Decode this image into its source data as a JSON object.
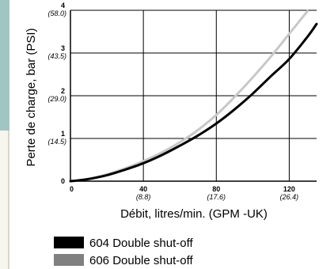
{
  "chart_data": {
    "type": "line",
    "xlabel": "Débit, litres/min. (GPM -UK)",
    "ylabel": "Perte de charge, bar (PSI)",
    "xlim": [
      0,
      135
    ],
    "ylim": [
      0,
      4
    ],
    "grid": true,
    "x_ticks": [
      {
        "value": 0,
        "label": "0",
        "sub": ""
      },
      {
        "value": 40,
        "label": "40",
        "sub": "(8.8)"
      },
      {
        "value": 80,
        "label": "80",
        "sub": "(17.6)"
      },
      {
        "value": 120,
        "label": "120",
        "sub": "(26.4)"
      }
    ],
    "y_ticks": [
      {
        "value": 0,
        "label": "0",
        "sub": ""
      },
      {
        "value": 1,
        "label": "1",
        "sub": "(14.5)"
      },
      {
        "value": 2,
        "label": "2",
        "sub": "(29.0)"
      },
      {
        "value": 3,
        "label": "3",
        "sub": "(43.5)"
      },
      {
        "value": 4,
        "label": "4",
        "sub": "(58.0)"
      }
    ],
    "series": [
      {
        "name": "604 Double shut-off",
        "color": "#000000",
        "x": [
          0,
          10,
          20,
          30,
          40,
          50,
          60,
          70,
          80,
          90,
          100,
          110,
          120,
          130,
          135
        ],
        "y": [
          0,
          0.05,
          0.14,
          0.27,
          0.42,
          0.61,
          0.83,
          1.07,
          1.35,
          1.68,
          2.05,
          2.46,
          2.86,
          3.38,
          3.68
        ]
      },
      {
        "name": "606 Double shut-off",
        "color": "#c8c8c8",
        "x": [
          0,
          10,
          20,
          30,
          40,
          50,
          60,
          70,
          80,
          90,
          100,
          110,
          120,
          130
        ],
        "y": [
          0,
          0.06,
          0.16,
          0.3,
          0.47,
          0.67,
          0.91,
          1.2,
          1.55,
          1.97,
          2.43,
          2.92,
          3.45,
          3.98
        ]
      }
    ],
    "legend": [
      {
        "label": "604 Double shut-off",
        "color": "#000000"
      },
      {
        "label": "606 Double shut-off",
        "color": "#808080"
      }
    ]
  }
}
